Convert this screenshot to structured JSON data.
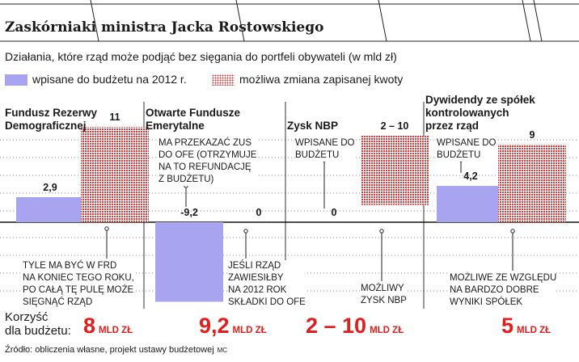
{
  "header": {
    "title": "Zaskórniaki ministra Jacka Rostowskiego",
    "subtitle": "Działania, które rząd może podjąć bez sięgania do portfeli obywateli (w mld zł)"
  },
  "legend": [
    {
      "label": "wpisane do budżetu na 2012 r.",
      "color": "#a9a4ef",
      "pattern": "solid"
    },
    {
      "label": "możliwa zmiana zapisanej kwoty",
      "color": "#e03838",
      "pattern": "dots"
    }
  ],
  "chart_data": {
    "type": "bar",
    "categories": [
      "Fundusz Rezerwy Demograficznej",
      "Otwarte Fundusze Emerytalne",
      "Zysk NBP",
      "Dywidendy ze spółek kontrolowanych przez rząd"
    ],
    "series": [
      {
        "name": "wpisane do budżetu na 2012 r.",
        "values": [
          2.9,
          -9.2,
          0,
          4.2
        ],
        "labels": [
          "2,9",
          "-9,2",
          "0",
          "4,2"
        ]
      },
      {
        "name": "możliwa zmiana zapisanej kwoty",
        "values": [
          11,
          0,
          10,
          9
        ],
        "range_low": [
          null,
          null,
          2,
          null
        ],
        "labels": [
          "11",
          "0",
          "2 – 10",
          "9"
        ]
      }
    ],
    "ylim": [
      -9.2,
      11
    ],
    "zero_line": true,
    "grid": "dotted horizontal",
    "legend_position": "top-left"
  },
  "categories": [
    {
      "title_lines": [
        "Fundusz Rezerwy",
        "Demograficznej"
      ],
      "notes_above": [],
      "notes_below": [
        {
          "lines": [
            "TYLE MA BYĆ W FRD",
            "NA KONIEC TEGO ROKU,",
            "PO CAŁĄ TĘ PULĘ MOŻE",
            "SIĘGNĄĆ RZĄD"
          ]
        }
      ],
      "gain": {
        "number": "8",
        "unit": "MLD ZŁ"
      }
    },
    {
      "title_lines": [
        "Otwarte Fundusze",
        "Emerytalne"
      ],
      "notes_above": [
        {
          "lines": [
            "MA PRZEKAZAĆ ZUS",
            "DO OFE (OTRZYMUJE",
            "NA TO REFUNDACJĘ",
            "Z BUDŻETU)"
          ]
        }
      ],
      "notes_below": [
        {
          "lines": [
            "JEŚLI RZĄD",
            "ZAWIESIŁBY",
            "NA 2012 ROK",
            "SKŁADKI DO OFE"
          ]
        }
      ],
      "gain": {
        "number": "9,2",
        "unit": "MLD ZŁ"
      }
    },
    {
      "title_lines": [
        "Zysk NBP"
      ],
      "notes_above": [
        {
          "lines": [
            "WPISANE DO",
            "BUDŻETU"
          ]
        }
      ],
      "notes_below": [
        {
          "lines": [
            "MOŻLIWY",
            "ZYSK NBP"
          ]
        }
      ],
      "gain": {
        "number": "2 – 10",
        "unit": "MLD ZŁ"
      }
    },
    {
      "title_lines": [
        "Dywidendy ze spółek",
        "kontrolowanych",
        "przez rząd"
      ],
      "notes_above": [
        {
          "lines": [
            "WPISANE DO",
            "BUDŻETU"
          ]
        }
      ],
      "notes_below": [
        {
          "lines": [
            "MOŻLIWE ZE WZGLĘDU",
            "NA BARDZO DOBRE",
            "WYNIKI SPÓŁEK"
          ]
        }
      ],
      "gain": {
        "number": "5",
        "unit": "MLD ZŁ"
      }
    }
  ],
  "footer": {
    "gain_label_line1": "Korzyść",
    "gain_label_line2": "dla budżetu:",
    "source": "Źródło: obliczenia własne, projekt ustawy budżetowej",
    "credit": "MC"
  }
}
